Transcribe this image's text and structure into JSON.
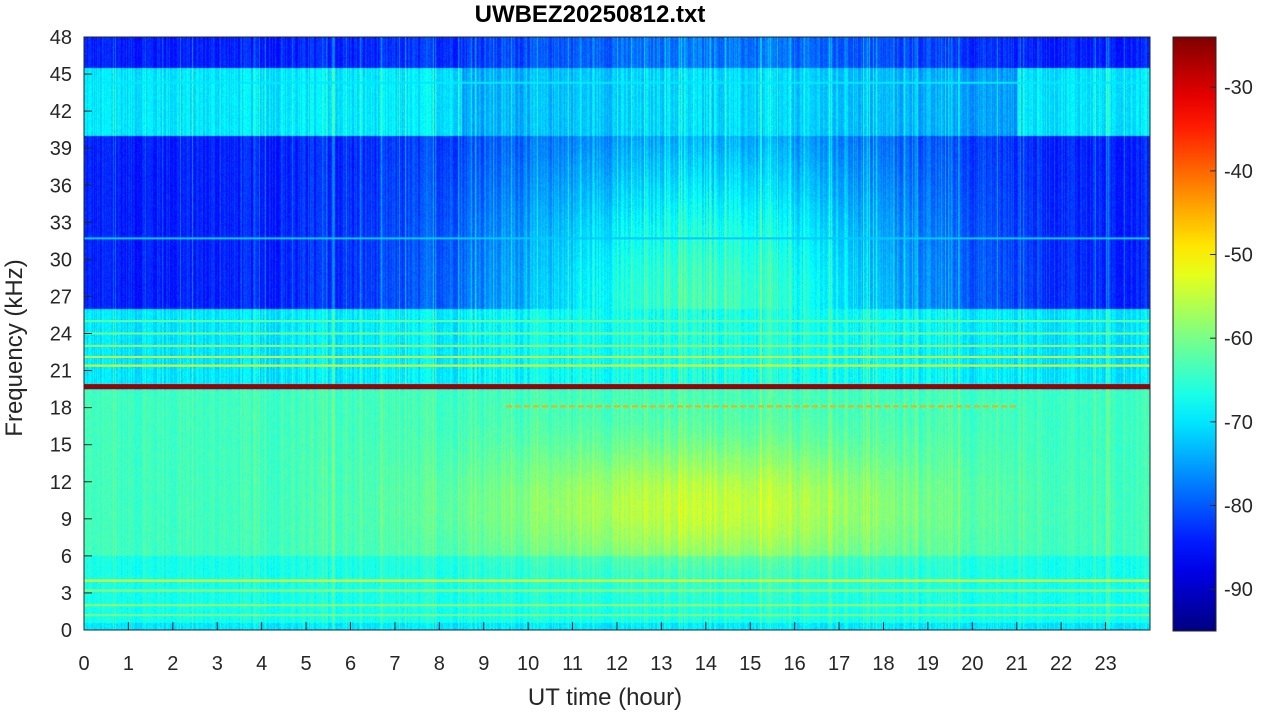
{
  "chart_data": {
    "type": "heatmap",
    "title": "UWBEZ20250812.txt",
    "xlabel": "UT time (hour)",
    "ylabel": "Frequency (kHz)",
    "xlim": [
      0,
      24
    ],
    "ylim": [
      0,
      48
    ],
    "x_ticks": [
      "0",
      "1",
      "2",
      "3",
      "4",
      "5",
      "6",
      "7",
      "8",
      "9",
      "10",
      "11",
      "12",
      "13",
      "14",
      "15",
      "16",
      "17",
      "18",
      "19",
      "20",
      "21",
      "22",
      "23"
    ],
    "y_ticks": [
      "0",
      "3",
      "6",
      "9",
      "12",
      "15",
      "18",
      "21",
      "24",
      "27",
      "30",
      "33",
      "36",
      "39",
      "42",
      "45",
      "48"
    ],
    "colorbar": {
      "range": [
        -95,
        -24
      ],
      "ticks": [
        "-90",
        "-80",
        "-70",
        "-60",
        "-50",
        "-40",
        "-30"
      ],
      "colormap": "jet"
    },
    "features": [
      {
        "kind": "line",
        "freq_khz": 19.7,
        "t_start": 0,
        "t_end": 24,
        "level_db": -26
      },
      {
        "kind": "line",
        "freq_khz": 21.4,
        "t_start": 0,
        "t_end": 24,
        "level_db": -52
      },
      {
        "kind": "line",
        "freq_khz": 22.1,
        "t_start": 0,
        "t_end": 24,
        "level_db": -55
      },
      {
        "kind": "line",
        "freq_khz": 23.0,
        "t_start": 0,
        "t_end": 24,
        "level_db": -58
      },
      {
        "kind": "line",
        "freq_khz": 24.0,
        "t_start": 0,
        "t_end": 24,
        "level_db": -60
      },
      {
        "kind": "line",
        "freq_khz": 25.0,
        "t_start": 0,
        "t_end": 24,
        "level_db": -62
      },
      {
        "kind": "line",
        "freq_khz": 18.1,
        "t_start": 9.5,
        "t_end": 21.0,
        "level_db": -45
      },
      {
        "kind": "line",
        "freq_khz": 4.0,
        "t_start": 0,
        "t_end": 24,
        "level_db": -52
      },
      {
        "kind": "line",
        "freq_khz": 3.2,
        "t_start": 0,
        "t_end": 24,
        "level_db": -58
      },
      {
        "kind": "line",
        "freq_khz": 2.0,
        "t_start": 0,
        "t_end": 24,
        "level_db": -58
      },
      {
        "kind": "line",
        "freq_khz": 1.2,
        "t_start": 0,
        "t_end": 24,
        "level_db": -60
      },
      {
        "kind": "line",
        "freq_khz": 44.3,
        "t_start": 0,
        "t_end": 24,
        "level_db": -70
      },
      {
        "kind": "line",
        "freq_khz": 31.7,
        "t_start": 0,
        "t_end": 24,
        "level_db": -72
      }
    ]
  }
}
